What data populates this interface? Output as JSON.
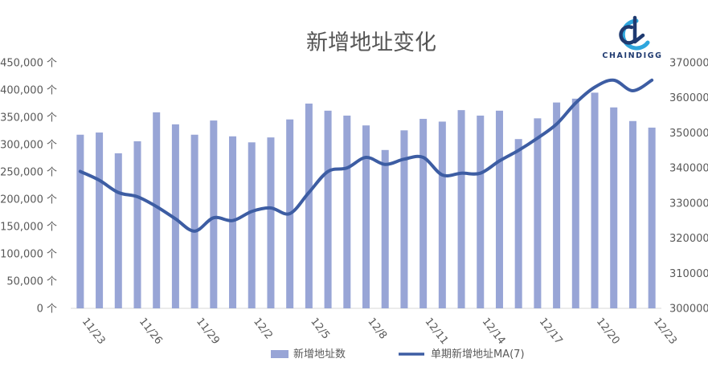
{
  "chart_data": {
    "type": "bar+line",
    "title": "新增地址变化",
    "categories": [
      "11/23",
      "11/24",
      "11/25",
      "11/26",
      "11/27",
      "11/28",
      "11/29",
      "11/30",
      "12/1",
      "12/2",
      "12/3",
      "12/4",
      "12/5",
      "12/6",
      "12/7",
      "12/8",
      "12/9",
      "12/10",
      "12/11",
      "12/12",
      "12/13",
      "12/14",
      "12/15",
      "12/16",
      "12/17",
      "12/18",
      "12/19",
      "12/20",
      "12/21",
      "12/22",
      "12/23"
    ],
    "x_tick_labels": [
      "11/23",
      "11/26",
      "11/29",
      "12/2",
      "12/5",
      "12/8",
      "12/11",
      "12/14",
      "12/17",
      "12/20",
      "12/23"
    ],
    "x_tick_every": 3,
    "series": [
      {
        "name": "新增地址数",
        "type": "bar",
        "axis": "left",
        "color": "#98a5d6",
        "values": [
          318000,
          322000,
          284000,
          306000,
          359000,
          337000,
          318000,
          344000,
          315000,
          304000,
          313000,
          346000,
          375000,
          362000,
          353000,
          335000,
          290000,
          326000,
          347000,
          342000,
          363000,
          353000,
          362000,
          310000,
          348000,
          377000,
          384000,
          395000,
          368000,
          343000,
          331000
        ]
      },
      {
        "name": "单期新增地址MA(7)",
        "type": "line",
        "axis": "right",
        "color": "#3d5da3",
        "values": [
          339000,
          336500,
          333000,
          331800,
          329000,
          325500,
          322000,
          325800,
          325000,
          327600,
          328600,
          327000,
          333000,
          339000,
          340000,
          343000,
          341000,
          342500,
          343000,
          338000,
          338500,
          338500,
          342000,
          345000,
          348500,
          352500,
          358500,
          363000,
          365000,
          362000,
          365000
        ]
      }
    ],
    "y_left": {
      "min": 0,
      "max": 450000,
      "step": 50000,
      "tick_labels": [
        "0 个",
        "50,000 个",
        "100,000 个",
        "150,000 个",
        "200,000 个",
        "250,000 个",
        "300,000 个",
        "350,000 个",
        "400,000 个",
        "450,000 个"
      ]
    },
    "y_right": {
      "min": 300000,
      "max": 370000,
      "step": 10000,
      "tick_labels": [
        "300000",
        "310000",
        "320000",
        "330000",
        "340000",
        "350000",
        "360000",
        "370000"
      ]
    },
    "grid": false,
    "legend": {
      "position": "bottom",
      "items": [
        {
          "label": "新增地址数",
          "kind": "bar",
          "color": "#98a5d6"
        },
        {
          "label": "单期新增地址MA(7)",
          "kind": "line",
          "color": "#3d5da3"
        }
      ]
    }
  },
  "logo": {
    "text": "CHAINDIGG",
    "colors": {
      "primary": "#1f3a70",
      "accent": "#2fa6dd"
    }
  }
}
